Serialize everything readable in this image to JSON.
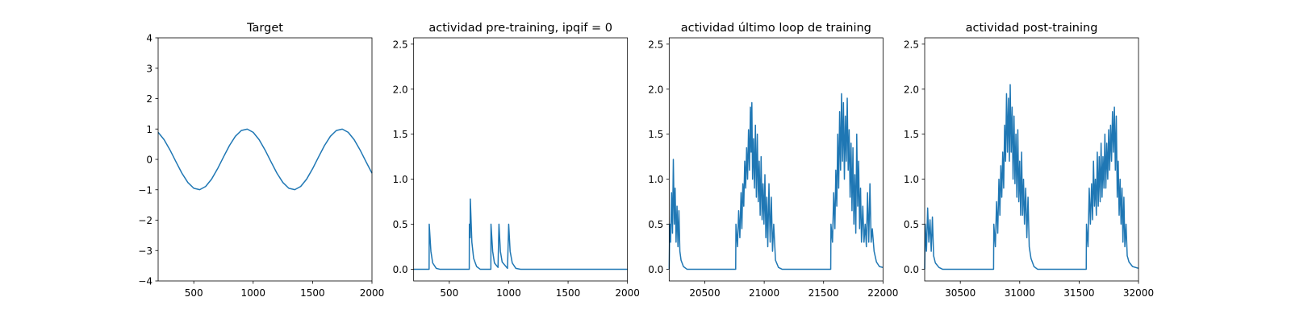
{
  "chart_data": [
    {
      "type": "line",
      "title": "Target",
      "color": "#1f77b4",
      "x": [
        200,
        250,
        300,
        350,
        400,
        450,
        500,
        550,
        600,
        650,
        700,
        750,
        800,
        850,
        900,
        950,
        1000,
        1050,
        1100,
        1150,
        1200,
        1250,
        1300,
        1350,
        1400,
        1450,
        1500,
        1550,
        1600,
        1650,
        1700,
        1750,
        1800,
        1850,
        1900,
        1950,
        2000
      ],
      "values": [
        0.891,
        0.649,
        0.309,
        -0.078,
        -0.454,
        -0.76,
        -0.951,
        -0.997,
        -0.891,
        -0.649,
        -0.309,
        0.078,
        0.454,
        0.76,
        0.951,
        0.997,
        0.891,
        0.649,
        0.309,
        -0.078,
        -0.454,
        -0.76,
        -0.951,
        -0.997,
        -0.891,
        -0.649,
        -0.309,
        0.078,
        0.454,
        0.76,
        0.951,
        0.997,
        0.891,
        0.649,
        0.309,
        -0.078,
        -0.454
      ],
      "xlim": [
        200,
        2000
      ],
      "ylim": [
        -4,
        4
      ],
      "xticks": [
        500,
        1000,
        1500,
        2000
      ],
      "yticks": [
        {
          "value": -4,
          "label": "−4"
        },
        {
          "value": -3,
          "label": "−3"
        },
        {
          "value": -2,
          "label": "−2"
        },
        {
          "value": -1,
          "label": "−1"
        },
        0,
        1,
        2,
        3,
        4
      ]
    },
    {
      "type": "line",
      "title": "actividad pre-training, ipqif = 0",
      "color": "#1f77b4",
      "x": [
        200,
        330,
        331,
        345,
        360,
        390,
        420,
        668,
        669,
        675,
        677,
        690,
        705,
        730,
        760,
        850,
        851,
        865,
        880,
        910,
        918,
        930,
        945,
        990,
        1000,
        1012,
        1030,
        1060,
        1100,
        2000
      ],
      "values": [
        0,
        0,
        0.5,
        0.2,
        0.07,
        0.01,
        0,
        0,
        0.5,
        0.35,
        0.78,
        0.3,
        0.12,
        0.03,
        0,
        0,
        0.5,
        0.2,
        0.07,
        0.02,
        0.5,
        0.2,
        0.08,
        0.01,
        0.5,
        0.2,
        0.07,
        0.01,
        0,
        0
      ],
      "xlim": [
        200,
        2000
      ],
      "ylim": [
        -0.13,
        2.57
      ],
      "xticks": [
        500,
        1000,
        1500,
        2000
      ],
      "yticks": [
        {
          "value": 0,
          "label": "0.0"
        },
        0.5,
        {
          "value": 1,
          "label": "1.0"
        },
        1.5,
        {
          "value": 2,
          "label": "2.0"
        },
        2.5
      ]
    },
    {
      "type": "line",
      "title": "actividad último loop de training",
      "color": "#1f77b4",
      "x": [
        20200,
        20205,
        20212,
        20220,
        20228,
        20235,
        20243,
        20250,
        20258,
        20266,
        20274,
        20282,
        20290,
        20300,
        20320,
        20350,
        20760,
        20762,
        20775,
        20785,
        20795,
        20805,
        20812,
        20820,
        20828,
        20836,
        20844,
        20852,
        20860,
        20868,
        20876,
        20884,
        20890,
        20896,
        20902,
        20910,
        20918,
        20926,
        20934,
        20942,
        20950,
        20958,
        20966,
        20974,
        20982,
        20990,
        20998,
        21006,
        21014,
        21022,
        21030,
        21040,
        21050,
        21060,
        21070,
        21080,
        21095,
        21120,
        21150,
        21560,
        21562,
        21575,
        21585,
        21595,
        21603,
        21611,
        21619,
        21627,
        21635,
        21643,
        21651,
        21659,
        21667,
        21675,
        21683,
        21691,
        21699,
        21707,
        21715,
        21723,
        21731,
        21739,
        21747,
        21755,
        21763,
        21771,
        21779,
        21787,
        21795,
        21803,
        21811,
        21819,
        21830,
        21840,
        21850,
        21860,
        21870,
        21880,
        21890,
        21900,
        21910,
        21925,
        21945,
        21970,
        22000
      ],
      "values": [
        0,
        0.5,
        0.3,
        0.85,
        0.4,
        1.22,
        0.5,
        0.9,
        0.3,
        0.7,
        0.25,
        0.65,
        0.2,
        0.1,
        0.03,
        0,
        0,
        0.5,
        0.25,
        0.65,
        0.35,
        0.85,
        0.45,
        0.95,
        0.7,
        1.2,
        0.9,
        1.35,
        1.0,
        1.55,
        1.1,
        1.8,
        1.3,
        1.85,
        1.0,
        1.45,
        0.9,
        1.6,
        0.8,
        1.5,
        0.75,
        1.2,
        0.6,
        1.25,
        0.55,
        0.95,
        0.5,
        1.05,
        0.35,
        0.8,
        0.25,
        0.95,
        0.3,
        0.8,
        0.2,
        0.5,
        0.1,
        0.02,
        0,
        0,
        0.5,
        0.3,
        0.85,
        0.45,
        1.1,
        0.7,
        1.5,
        0.9,
        1.75,
        1.1,
        1.95,
        1.2,
        1.85,
        1.0,
        1.7,
        1.2,
        1.9,
        1.1,
        1.55,
        0.8,
        1.4,
        0.65,
        1.35,
        0.5,
        1.05,
        0.4,
        1.5,
        0.7,
        1.2,
        0.45,
        0.9,
        0.3,
        0.7,
        0.3,
        0.5,
        0.25,
        0.85,
        0.3,
        0.95,
        0.3,
        0.45,
        0.2,
        0.08,
        0.03,
        0.02
      ],
      "xlim": [
        20200,
        22000
      ],
      "ylim": [
        -0.13,
        2.57
      ],
      "xticks": [
        20500,
        21000,
        21500,
        22000
      ],
      "yticks": [
        {
          "value": 0,
          "label": "0.0"
        },
        0.5,
        {
          "value": 1,
          "label": "1.0"
        },
        1.5,
        {
          "value": 2,
          "label": "2.0"
        },
        2.5
      ]
    },
    {
      "type": "line",
      "title": "actividad post-training",
      "color": "#1f77b4",
      "x": [
        30200,
        30205,
        30215,
        30225,
        30235,
        30245,
        30255,
        30265,
        30275,
        30290,
        30320,
        30350,
        30780,
        30782,
        30795,
        30805,
        30815,
        30825,
        30833,
        30841,
        30849,
        30857,
        30865,
        30873,
        30881,
        30889,
        30897,
        30905,
        30913,
        30920,
        30928,
        30936,
        30944,
        30952,
        30960,
        30968,
        30976,
        30984,
        30992,
        31000,
        31008,
        31016,
        31024,
        31032,
        31040,
        31050,
        31060,
        31070,
        31080,
        31095,
        31120,
        31150,
        31560,
        31562,
        31575,
        31585,
        31595,
        31605,
        31613,
        31621,
        31629,
        31637,
        31645,
        31653,
        31661,
        31669,
        31677,
        31685,
        31693,
        31701,
        31709,
        31717,
        31725,
        31733,
        31741,
        31749,
        31757,
        31765,
        31773,
        31781,
        31789,
        31797,
        31805,
        31813,
        31821,
        31829,
        31837,
        31845,
        31853,
        31861,
        31869,
        31877,
        31885,
        31895,
        31905,
        31920,
        31950,
        32000
      ],
      "values": [
        0,
        0.5,
        0.2,
        0.68,
        0.3,
        0.55,
        0.2,
        0.58,
        0.15,
        0.07,
        0.02,
        0,
        0,
        0.5,
        0.25,
        0.75,
        0.4,
        1.0,
        0.6,
        1.15,
        0.8,
        1.3,
        0.9,
        1.6,
        1.2,
        1.95,
        1.3,
        1.9,
        1.2,
        2.05,
        1.3,
        1.8,
        1.0,
        1.7,
        0.95,
        1.5,
        0.8,
        1.55,
        0.75,
        1.2,
        0.6,
        1.3,
        0.6,
        1.0,
        0.5,
        0.9,
        0.35,
        0.8,
        0.25,
        0.12,
        0.03,
        0,
        0,
        0.5,
        0.25,
        0.9,
        0.5,
        0.95,
        0.55,
        1.2,
        0.7,
        1.0,
        0.6,
        1.3,
        0.7,
        1.25,
        0.75,
        1.4,
        0.8,
        1.25,
        0.9,
        1.5,
        0.9,
        1.4,
        1.0,
        1.55,
        1.1,
        1.6,
        1.2,
        1.75,
        1.3,
        1.8,
        1.1,
        1.7,
        0.8,
        1.2,
        0.6,
        1.0,
        0.5,
        0.9,
        0.3,
        0.8,
        0.25,
        0.5,
        0.15,
        0.08,
        0.03,
        0.01
      ],
      "xlim": [
        30200,
        32000
      ],
      "ylim": [
        -0.13,
        2.57
      ],
      "xticks": [
        30500,
        31000,
        31500,
        32000
      ],
      "yticks": [
        {
          "value": 0,
          "label": "0.0"
        },
        0.5,
        {
          "value": 1,
          "label": "1.0"
        },
        1.5,
        {
          "value": 2,
          "label": "2.0"
        },
        2.5
      ]
    }
  ]
}
